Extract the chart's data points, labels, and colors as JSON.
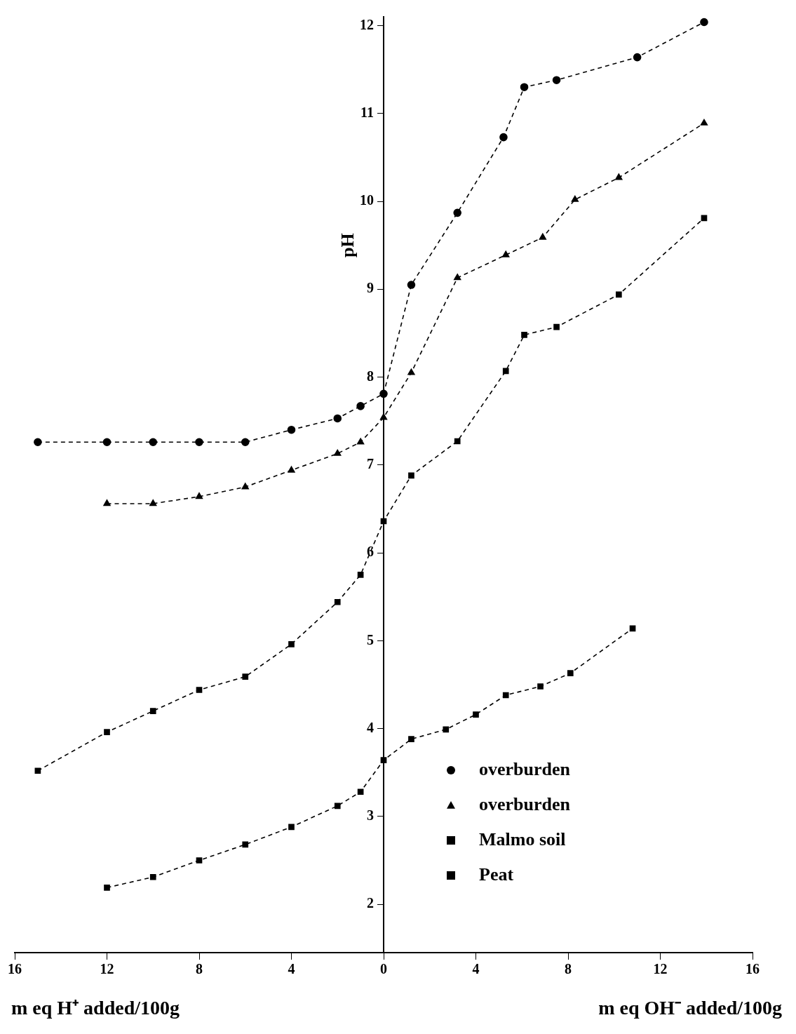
{
  "chart_data": {
    "type": "line",
    "ylabel": "pH",
    "xlim": [
      -16,
      16
    ],
    "ylim": [
      1.45,
      12.1
    ],
    "xticks": [
      {
        "value": -16,
        "label": "16"
      },
      {
        "value": -12,
        "label": "12"
      },
      {
        "value": -8,
        "label": "8"
      },
      {
        "value": -4,
        "label": "4"
      },
      0,
      4,
      8,
      12,
      16
    ],
    "yticks": [
      2,
      3,
      4,
      5,
      6,
      7,
      8,
      9,
      10,
      11,
      12
    ],
    "grid": false,
    "legend": "bottom right",
    "line_style": "dashed",
    "annotations": [
      "m eq H⁺ added/100g",
      "m eq OH⁻ added/100g"
    ],
    "series": [
      {
        "name": "overburden",
        "color": "#000000",
        "marker": "circle",
        "x": [
          -15,
          -12,
          -10,
          -8,
          -6,
          -4,
          -2,
          -1,
          0,
          1.2,
          3.2,
          5.2,
          6.1,
          7.5,
          11,
          13.9
        ],
        "values": [
          7.26,
          7.26,
          7.26,
          7.26,
          7.26,
          7.4,
          7.53,
          7.67,
          7.81,
          9.05,
          9.87,
          10.73,
          11.3,
          11.38,
          11.64,
          12.04
        ]
      },
      {
        "name": "overburden",
        "color": "#000000",
        "marker": "triangle",
        "x": [
          -12,
          -10,
          -8,
          -6,
          -4,
          -2,
          -1,
          0,
          1.2,
          3.2,
          5.3,
          6.9,
          8.3,
          10.2,
          13.9
        ],
        "values": [
          6.56,
          6.56,
          6.64,
          6.75,
          6.94,
          7.13,
          7.26,
          7.54,
          8.05,
          9.13,
          9.39,
          9.59,
          10.02,
          10.27,
          10.89
        ]
      },
      {
        "name": "Malmo soil",
        "color": "#000000",
        "marker": "square",
        "x": [
          -15,
          -12,
          -10,
          -8,
          -6,
          -4,
          -2,
          -1,
          0,
          1.2,
          3.2,
          5.3,
          6.1,
          7.5,
          10.2,
          13.9
        ],
        "values": [
          3.52,
          3.96,
          4.2,
          4.44,
          4.59,
          4.96,
          5.44,
          5.75,
          6.36,
          6.88,
          7.27,
          8.07,
          8.48,
          8.57,
          8.94,
          9.81
        ]
      },
      {
        "name": "Peat",
        "color": "#000000",
        "marker": "square",
        "x": [
          -12,
          -10,
          -8,
          -6,
          -4,
          -2,
          -1,
          0,
          1.2,
          2.7,
          4,
          5.3,
          6.8,
          8.1,
          10.8
        ],
        "values": [
          2.19,
          2.31,
          2.5,
          2.68,
          2.88,
          3.12,
          3.28,
          3.64,
          3.88,
          3.99,
          4.16,
          4.38,
          4.48,
          4.63,
          5.14
        ]
      }
    ]
  }
}
